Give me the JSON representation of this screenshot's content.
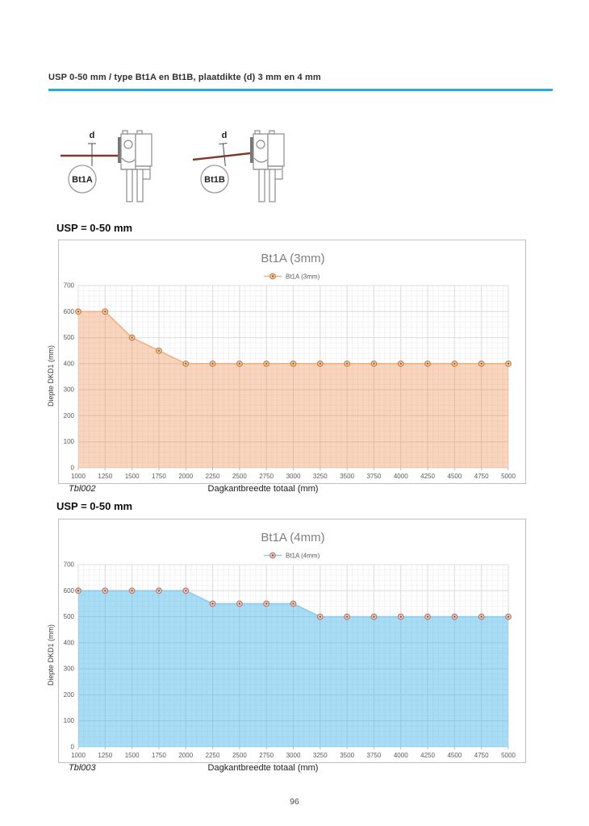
{
  "page": {
    "header_title": "USP 0-50 mm / type Bt1A en Bt1B, plaatdikte (d) 3 mm en 4 mm",
    "accent_color": "#29a9e1",
    "page_number": "96"
  },
  "diagrams": [
    {
      "label": "Bt1A",
      "dim_label": "d"
    },
    {
      "label": "Bt1B",
      "dim_label": "d"
    }
  ],
  "sections": [
    {
      "heading": "USP = 0-50 mm",
      "caption": "Tbl002"
    },
    {
      "heading": "USP = 0-50 mm",
      "caption": "Tbl003"
    }
  ],
  "chart_data": [
    {
      "type": "area",
      "title": "Bt1A (3mm)",
      "legend": "Bt1A (3mm)",
      "xlabel": "Dagkantbreedte totaal (mm)",
      "ylabel": "Diepte DKD1 (mm)",
      "x": [
        1000,
        1250,
        1500,
        1750,
        2000,
        2250,
        2500,
        2750,
        3000,
        3250,
        3500,
        3750,
        4000,
        4250,
        4500,
        4750,
        5000
      ],
      "values": [
        600,
        600,
        500,
        450,
        400,
        400,
        400,
        400,
        400,
        400,
        400,
        400,
        400,
        400,
        400,
        400,
        400
      ],
      "xlim": [
        1000,
        5000
      ],
      "ylim": [
        0,
        700
      ],
      "ytick_step": 100,
      "x_minor_step": 50,
      "y_minor_step": 20,
      "grid": true,
      "legend_position": "top",
      "colors": {
        "line": "#f2b183",
        "fill": "#ed7d31",
        "fill_opacity": 0.32,
        "marker_ring": "#c97a3e",
        "marker_fill": "#f7d2b3",
        "marker_dot": "#8b5a2f",
        "title": "#7f7f7f",
        "tick": "#595959",
        "grid_major": "#dcdcdc",
        "grid_minor": "#f3f3f3"
      }
    },
    {
      "type": "area",
      "title": "Bt1A (4mm)",
      "legend": "Bt1A (4mm)",
      "xlabel": "Dagkantbreedte totaal (mm)",
      "ylabel": "Diepte DKD1 (mm)",
      "x": [
        1000,
        1250,
        1500,
        1750,
        2000,
        2250,
        2500,
        2750,
        3000,
        3250,
        3500,
        3750,
        4000,
        4250,
        4500,
        4750,
        5000
      ],
      "values": [
        600,
        600,
        600,
        600,
        600,
        550,
        550,
        550,
        550,
        500,
        500,
        500,
        500,
        500,
        500,
        500,
        500
      ],
      "xlim": [
        1000,
        5000
      ],
      "ylim": [
        0,
        700
      ],
      "ytick_step": 100,
      "x_minor_step": 50,
      "y_minor_step": 20,
      "grid": true,
      "legend_position": "top",
      "colors": {
        "line": "#8fcbec",
        "fill": "#41b1e8",
        "fill_opacity": 0.45,
        "marker_ring": "#b5766b",
        "marker_fill": "#ecd6cd",
        "marker_dot": "#7d4a40",
        "title": "#7f7f7f",
        "tick": "#595959",
        "grid_major": "#dcdcdc",
        "grid_minor": "#f3f3f3"
      }
    }
  ]
}
